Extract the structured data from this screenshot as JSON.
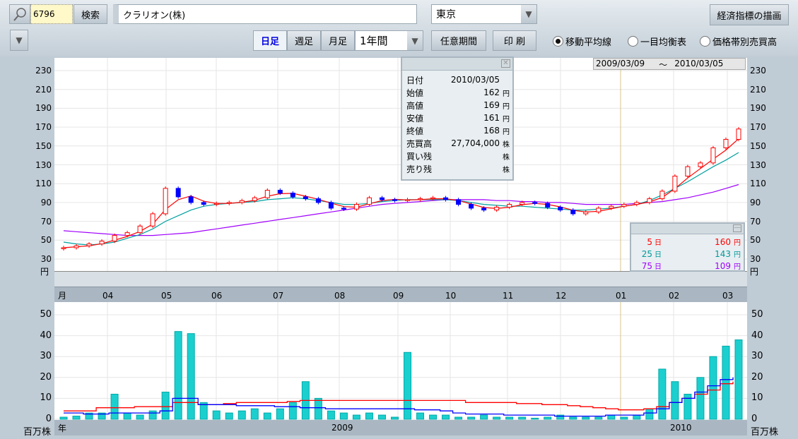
{
  "toolbar": {
    "code": "6796",
    "search_label": "検索",
    "company": "クラリオン(株)",
    "market": "東京",
    "econ_label": "経済指標の描画",
    "tabs": [
      "日足",
      "週足",
      "月足"
    ],
    "active_tab": "日足",
    "period": "1年間",
    "custom_period_label": "任意期間",
    "print_label": "印 刷",
    "radios": [
      "移動平均線",
      "一目均衡表",
      "価格帯別売買高"
    ],
    "selected_radio": "移動平均線"
  },
  "range": {
    "from": "2009/03/09",
    "sep": "～",
    "to": "2010/03/05"
  },
  "info": {
    "rows": [
      {
        "k": "日付",
        "v": "2010/03/05",
        "u": ""
      },
      {
        "k": "始値",
        "v": "162",
        "u": "円"
      },
      {
        "k": "高値",
        "v": "169",
        "u": "円"
      },
      {
        "k": "安値",
        "v": "161",
        "u": "円"
      },
      {
        "k": "終値",
        "v": "168",
        "u": "円"
      },
      {
        "k": "売買高",
        "v": "27,704,000",
        "u": "株"
      },
      {
        "k": "買い残",
        "v": "",
        "u": "株"
      },
      {
        "k": "売り残",
        "v": "",
        "u": "株"
      }
    ]
  },
  "ma_legend": [
    {
      "days": "5",
      "unit": "日",
      "value": "160",
      "yen": "円",
      "color": "#ff0000"
    },
    {
      "days": "25",
      "unit": "日",
      "value": "143",
      "yen": "円",
      "color": "#009999"
    },
    {
      "days": "75",
      "unit": "日",
      "value": "109",
      "yen": "円",
      "color": "#a000ff"
    }
  ],
  "axis": {
    "price_ticks": [
      "230",
      "210",
      "190",
      "170",
      "150",
      "130",
      "110",
      "90",
      "70",
      "50",
      "30"
    ],
    "price_unit": "円",
    "vol_ticks": [
      "50",
      "40",
      "30",
      "20",
      "10",
      "0"
    ],
    "vol_unit": "百万株",
    "month_label": "月",
    "year_label": "年",
    "months": [
      "04",
      "05",
      "06",
      "07",
      "08",
      "09",
      "10",
      "11",
      "12",
      "01",
      "02",
      "03"
    ],
    "years": [
      "2009",
      "2010"
    ]
  },
  "chart_data": [
    {
      "type": "candlestick",
      "ylim": [
        30,
        230
      ],
      "x_range": [
        "2009/03/09",
        "2010/03/05"
      ],
      "grid": true,
      "close": [
        42,
        44,
        46,
        49,
        55,
        58,
        65,
        78,
        105,
        96,
        90,
        88,
        89,
        90,
        92,
        95,
        103,
        100,
        96,
        94,
        90,
        84,
        83,
        88,
        95,
        93,
        92,
        93,
        94,
        95,
        93,
        88,
        84,
        82,
        85,
        88,
        90,
        89,
        85,
        82,
        78,
        80,
        84,
        86,
        88,
        90,
        94,
        102,
        118,
        128,
        132,
        148,
        157,
        168
      ],
      "ma25": [
        48,
        46,
        45,
        46,
        48,
        52,
        56,
        62,
        70,
        76,
        82,
        86,
        88,
        89,
        90,
        91,
        93,
        94,
        95,
        94,
        92,
        90,
        88,
        88,
        89,
        91,
        92,
        93,
        93,
        93,
        93,
        92,
        90,
        88,
        87,
        86,
        86,
        85,
        84,
        83,
        82,
        82,
        83,
        84,
        86,
        88,
        92,
        98,
        105,
        112,
        120,
        128,
        135,
        143
      ],
      "ma75": [
        60,
        59,
        58,
        57,
        56,
        55,
        55,
        55,
        56,
        57,
        58,
        60,
        62,
        64,
        66,
        68,
        70,
        72,
        74,
        76,
        78,
        80,
        82,
        84,
        86,
        88,
        89,
        90,
        91,
        92,
        93,
        93,
        93,
        93,
        92,
        92,
        91,
        91,
        90,
        90,
        89,
        88,
        88,
        88,
        88,
        89,
        90,
        91,
        93,
        95,
        98,
        101,
        105,
        109
      ]
    },
    {
      "type": "bar",
      "ylim": [
        0,
        50
      ],
      "unit": "百万株",
      "volume": [
        1,
        1.5,
        3,
        3,
        12,
        3,
        2,
        4,
        13,
        42,
        41,
        8,
        4,
        3,
        4,
        5,
        3,
        5,
        8,
        18,
        10,
        4,
        3,
        2,
        3,
        2,
        1,
        32,
        3,
        2,
        2,
        1,
        1,
        2,
        1,
        1,
        1,
        0.5,
        1,
        2,
        1,
        1,
        1,
        2,
        1,
        2,
        5,
        24,
        18,
        12,
        20,
        30,
        35,
        38
      ],
      "buy_balance": [
        4,
        4,
        4,
        5.5,
        5.5,
        5.5,
        6,
        6,
        6,
        8,
        8,
        7,
        7,
        7.5,
        8,
        8,
        8,
        8,
        8.5,
        9,
        9,
        9,
        9,
        9,
        9,
        9,
        9,
        9,
        9,
        9,
        9,
        9,
        8,
        8,
        8,
        8,
        7.5,
        7.5,
        7,
        7,
        6.5,
        6,
        5.5,
        5,
        4.5,
        4.5,
        5,
        6,
        8,
        10,
        12,
        14,
        17,
        18
      ],
      "sell_balance": [
        3,
        3,
        2.5,
        2.5,
        3,
        3,
        3,
        3,
        4,
        10,
        10,
        7,
        7,
        7,
        6.5,
        6.5,
        6.5,
        6,
        6,
        5.5,
        5.5,
        5,
        5,
        5,
        5,
        5,
        5,
        5,
        4.5,
        4.5,
        4,
        3,
        2.5,
        2.5,
        2.5,
        2,
        2,
        2,
        2,
        1.5,
        1.5,
        1.5,
        1.5,
        2,
        2,
        2,
        3,
        5,
        8,
        10,
        13,
        16,
        19,
        20
      ]
    }
  ]
}
